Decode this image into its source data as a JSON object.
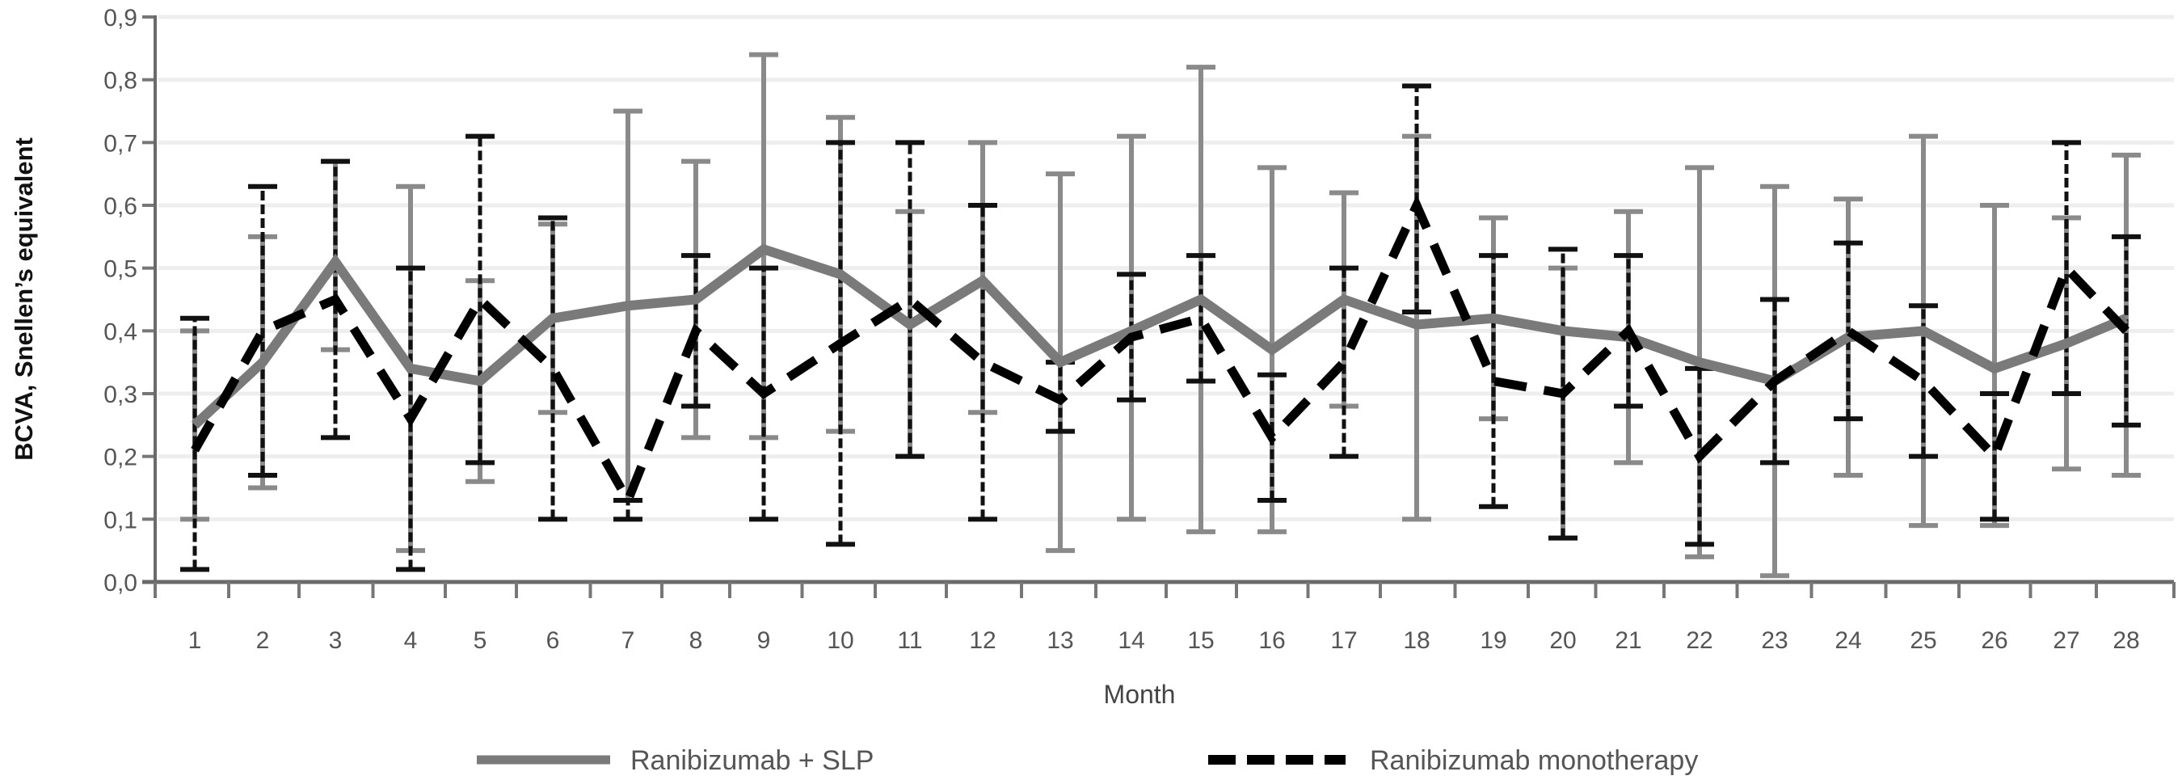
{
  "chart_data": {
    "type": "line",
    "title": "",
    "xlabel": "Month",
    "ylabel": "BCVA, Snellen’s equivalent",
    "ylim": [
      0.0,
      0.9
    ],
    "y_ticks": [
      "0,0",
      "0,1",
      "0,2",
      "0,3",
      "0,4",
      "0,5",
      "0,6",
      "0,7",
      "0,8",
      "0,9"
    ],
    "y_tick_values": [
      0.0,
      0.1,
      0.2,
      0.3,
      0.4,
      0.5,
      0.6,
      0.7,
      0.8,
      0.9
    ],
    "grid": "horizontal",
    "legend_position": "bottom",
    "x": [
      "1",
      "2",
      "3",
      "4",
      "5",
      "6",
      "7",
      "8",
      "9",
      "10",
      "11",
      "12",
      "13",
      "14",
      "15",
      "16",
      "17",
      "18",
      "19",
      "20",
      "21",
      "22",
      "23",
      "24",
      "25",
      "26",
      "27",
      "28"
    ],
    "series": [
      {
        "name": "Ranibizumab + SLP",
        "style": "solid",
        "color": "#7a7a7a",
        "values": [
          0.25,
          0.35,
          0.51,
          0.34,
          0.32,
          0.42,
          0.44,
          0.45,
          0.53,
          0.49,
          0.41,
          0.48,
          0.35,
          0.4,
          0.45,
          0.37,
          0.45,
          0.41,
          0.42,
          0.4,
          0.39,
          0.35,
          0.32,
          0.39,
          0.4,
          0.34,
          0.38,
          0.42
        ],
        "error_low": [
          0.1,
          0.15,
          0.37,
          0.05,
          0.16,
          0.27,
          0.13,
          0.23,
          0.23,
          0.24,
          0.2,
          0.27,
          0.05,
          0.1,
          0.08,
          0.08,
          0.28,
          0.1,
          0.26,
          0.07,
          0.19,
          0.04,
          0.01,
          0.17,
          0.09,
          0.09,
          0.18,
          0.17
        ],
        "error_high": [
          0.4,
          0.55,
          0.67,
          0.63,
          0.48,
          0.57,
          0.75,
          0.67,
          0.84,
          0.74,
          0.59,
          0.7,
          0.65,
          0.71,
          0.82,
          0.66,
          0.62,
          0.71,
          0.58,
          0.5,
          0.59,
          0.66,
          0.63,
          0.61,
          0.71,
          0.6,
          0.58,
          0.68
        ]
      },
      {
        "name": "Ranibizumab monotherapy",
        "style": "dashed",
        "color": "#000000",
        "values": [
          0.21,
          0.4,
          0.45,
          0.26,
          0.45,
          0.34,
          0.13,
          0.4,
          0.3,
          0.38,
          0.45,
          0.35,
          0.29,
          0.39,
          0.42,
          0.23,
          0.35,
          0.6,
          0.32,
          0.3,
          0.4,
          0.2,
          0.32,
          0.4,
          0.32,
          0.2,
          0.5,
          0.4
        ],
        "error_low": [
          0.02,
          0.17,
          0.23,
          0.02,
          0.19,
          0.1,
          0.1,
          0.28,
          0.1,
          0.06,
          0.2,
          0.1,
          0.24,
          0.29,
          0.32,
          0.13,
          0.2,
          0.43,
          0.12,
          0.07,
          0.28,
          0.06,
          0.19,
          0.26,
          0.2,
          0.1,
          0.3,
          0.25
        ],
        "error_high": [
          0.42,
          0.63,
          0.67,
          0.5,
          0.71,
          0.58,
          0.13,
          0.52,
          0.5,
          0.7,
          0.7,
          0.6,
          0.35,
          0.49,
          0.52,
          0.33,
          0.5,
          0.79,
          0.52,
          0.53,
          0.52,
          0.34,
          0.45,
          0.54,
          0.44,
          0.3,
          0.7,
          0.55
        ]
      }
    ]
  }
}
